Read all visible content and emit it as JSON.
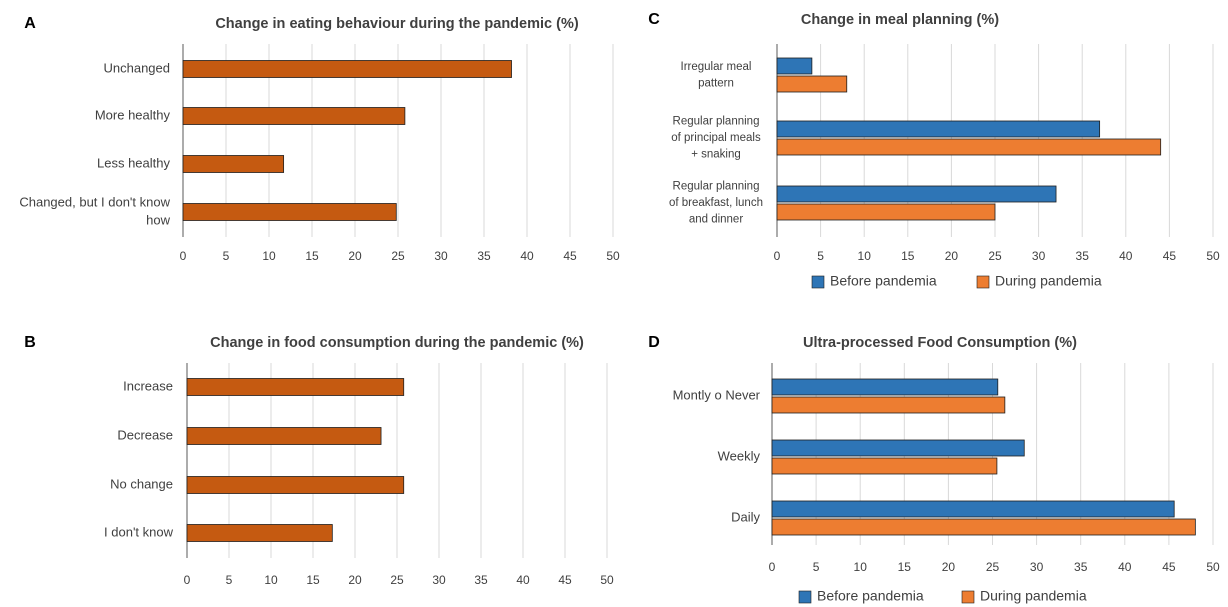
{
  "chart_data": [
    {
      "panel_letter": "A",
      "type": "bar",
      "orientation": "horizontal",
      "title": "Change in eating behaviour during the pandemic (%)",
      "categories": [
        [
          "Unchanged"
        ],
        [
          "More healthy"
        ],
        [
          "Less healthy"
        ],
        [
          "Changed, but I don't know",
          "how"
        ]
      ],
      "series": [
        {
          "color": "#c55a11",
          "values": [
            38.2,
            25.8,
            11.7,
            24.8
          ]
        }
      ],
      "xticks": [
        "0",
        "5",
        "10",
        "15",
        "20",
        "25",
        "30",
        "35",
        "40",
        "45",
        "50"
      ],
      "xlim": [
        0,
        50
      ],
      "grid": true,
      "legend": []
    },
    {
      "panel_letter": "B",
      "type": "bar",
      "orientation": "horizontal",
      "title": "Change in food consumption during the pandemic (%)",
      "categories": [
        [
          "Increase"
        ],
        [
          "Decrease"
        ],
        [
          "No change"
        ],
        [
          "I don't know"
        ]
      ],
      "series": [
        {
          "color": "#c55a11",
          "values": [
            25.8,
            23.1,
            25.8,
            17.3
          ]
        }
      ],
      "xticks": [
        "0",
        "5",
        "10",
        "15",
        "20",
        "25",
        "30",
        "35",
        "40",
        "45",
        "50"
      ],
      "xlim": [
        0,
        50
      ],
      "grid": true,
      "legend": []
    },
    {
      "panel_letter": "C",
      "type": "bar",
      "orientation": "horizontal",
      "title": "Change in meal planning  (%)",
      "categories": [
        [
          "Irregular meal",
          "pattern"
        ],
        [
          "Regular planning",
          "of principal meals",
          "+ snaking"
        ],
        [
          "Regular planning",
          "of breakfast, lunch",
          "and dinner"
        ]
      ],
      "series": [
        {
          "name": "Before pandemia",
          "color": "#2e75b6",
          "values": [
            4,
            37,
            32
          ]
        },
        {
          "name": "During pandemia",
          "color": "#ed7d31",
          "values": [
            8,
            44,
            25
          ]
        }
      ],
      "xticks": [
        "0",
        "5",
        "10",
        "15",
        "20",
        "25",
        "30",
        "35",
        "40",
        "45",
        "50"
      ],
      "xlim": [
        0,
        50
      ],
      "grid": true,
      "legend": [
        "Before pandemia",
        "During pandemia"
      ]
    },
    {
      "panel_letter": "D",
      "type": "bar",
      "orientation": "horizontal",
      "title": "Ultra-processed Food Consumption (%)",
      "categories": [
        [
          "Montly o Never"
        ],
        [
          "Weekly"
        ],
        [
          "Daily"
        ]
      ],
      "series": [
        {
          "name": "Before pandemia",
          "color": "#2e75b6",
          "values": [
            25.6,
            28.6,
            45.6
          ]
        },
        {
          "name": "During pandemia",
          "color": "#ed7d31",
          "values": [
            26.4,
            25.5,
            48.0
          ]
        }
      ],
      "xticks": [
        "0",
        "5",
        "10",
        "15",
        "20",
        "25",
        "30",
        "35",
        "40",
        "45",
        "50"
      ],
      "xlim": [
        0,
        50
      ],
      "grid": true,
      "legend": [
        "Before pandemia",
        "During pandemia"
      ]
    }
  ]
}
